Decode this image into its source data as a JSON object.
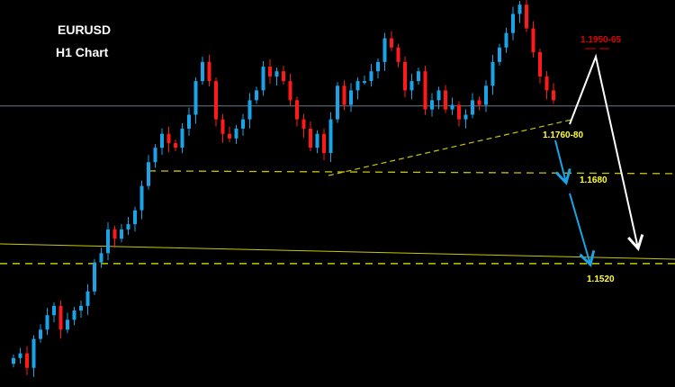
{
  "chart_data": {
    "type": "candlestick",
    "title": "EURUSD",
    "subtitle": "H1 Chart",
    "ylim": [
      1.1307,
      1.1975
    ],
    "grid": false,
    "closes": [
      1.1357,
      1.1365,
      1.134,
      1.139,
      1.1406,
      1.1431,
      1.1447,
      1.1406,
      1.1423,
      1.1439,
      1.1447,
      1.1472,
      1.1522,
      1.1538,
      1.1579,
      1.1563,
      1.1579,
      1.1588,
      1.1612,
      1.1654,
      1.1695,
      1.172,
      1.1744,
      1.1728,
      1.172,
      1.1753,
      1.1777,
      1.1835,
      1.1868,
      1.1835,
      1.1769,
      1.1744,
      1.1736,
      1.1753,
      1.1769,
      1.1802,
      1.1819,
      1.186,
      1.1843,
      1.1852,
      1.1835,
      1.1802,
      1.1769,
      1.1753,
      1.172,
      1.1744,
      1.1711,
      1.1769,
      1.1827,
      1.1794,
      1.1819,
      1.1835,
      1.1835,
      1.1852,
      1.1868,
      1.1909,
      1.1893,
      1.1868,
      1.1819,
      1.1835,
      1.1852,
      1.1786,
      1.1802,
      1.1819,
      1.1786,
      1.1794,
      1.1769,
      1.1777,
      1.1802,
      1.1794,
      1.1827,
      1.1868,
      1.1893,
      1.1918,
      1.1951,
      1.1967,
      1.1926,
      1.1885,
      1.1843,
      1.1819,
      1.1802
    ],
    "levels": {
      "support_1": {
        "price": 1.168,
        "label": "1.1680"
      },
      "support_2": {
        "price": 1.152,
        "label": "1.1520"
      },
      "neckline_zone": {
        "label": "1.1760-80"
      },
      "target_up": {
        "label": "1.1950-65"
      },
      "current_price_line": 1.1792
    },
    "colors": {
      "up": "#1aa3e6",
      "down": "#ff1a1a",
      "levels": "#c8c800",
      "target": "#e00000",
      "projection_up": "#ffffff",
      "projection_down": "#1aa3e6"
    }
  }
}
